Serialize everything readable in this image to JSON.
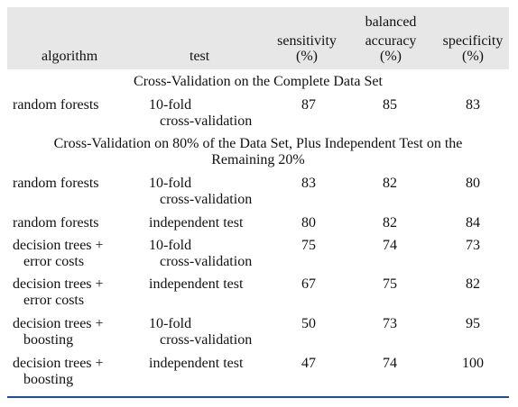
{
  "table": {
    "headers": {
      "algorithm": "algorithm",
      "test": "test",
      "sensitivity": [
        "sensitivity",
        "(%)"
      ],
      "balanced_accuracy": [
        "balanced",
        "accuracy",
        "(%)"
      ],
      "specificity": [
        "specificity",
        "(%)"
      ]
    },
    "sections": [
      {
        "title_lines": [
          "Cross-Validation on the Complete Data Set"
        ],
        "rows": [
          {
            "algorithm": [
              "random forests"
            ],
            "test": [
              "10-fold",
              "cross-validation"
            ],
            "sensitivity": "87",
            "balanced_accuracy": "85",
            "specificity": "83"
          }
        ]
      },
      {
        "title_lines": [
          "Cross-Validation on 80% of the Data Set, Plus Independent Test on the",
          "Remaining 20%"
        ],
        "rows": [
          {
            "algorithm": [
              "random forests"
            ],
            "test": [
              "10-fold",
              "cross-validation"
            ],
            "sensitivity": "83",
            "balanced_accuracy": "82",
            "specificity": "80"
          },
          {
            "algorithm": [
              "random forests"
            ],
            "test": [
              "independent test"
            ],
            "sensitivity": "80",
            "balanced_accuracy": "82",
            "specificity": "84"
          },
          {
            "algorithm": [
              "decision trees +",
              "error costs"
            ],
            "test": [
              "10-fold",
              "cross-validation"
            ],
            "sensitivity": "75",
            "balanced_accuracy": "74",
            "specificity": "73"
          },
          {
            "algorithm": [
              "decision trees +",
              "error costs"
            ],
            "test": [
              "independent test"
            ],
            "sensitivity": "67",
            "balanced_accuracy": "75",
            "specificity": "82"
          },
          {
            "algorithm": [
              "decision trees +",
              "boosting"
            ],
            "test": [
              "10-fold",
              "cross-validation"
            ],
            "sensitivity": "50",
            "balanced_accuracy": "73",
            "specificity": "95"
          },
          {
            "algorithm": [
              "decision trees +",
              "boosting"
            ],
            "test": [
              "independent test"
            ],
            "sensitivity": "47",
            "balanced_accuracy": "74",
            "specificity": "100"
          }
        ]
      }
    ]
  }
}
